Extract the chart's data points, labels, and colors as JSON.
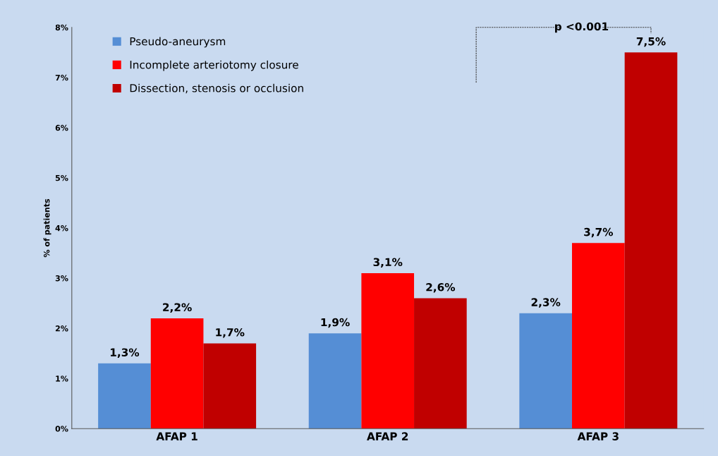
{
  "chart_data": {
    "type": "bar",
    "ylabel": "% of patients",
    "categories": [
      "AFAP 1",
      "AFAP 2",
      "AFAP 3"
    ],
    "series": [
      {
        "name": "Pseudo-aneurysm",
        "color": "#558ed5",
        "values": [
          1.3,
          1.9,
          2.3
        ],
        "value_labels": [
          "1,3%",
          "1,9%",
          "2,3%"
        ]
      },
      {
        "name": "Incomplete arteriotomy closure",
        "color": "#ff0000",
        "values": [
          2.2,
          3.1,
          3.7
        ],
        "value_labels": [
          "2,2%",
          "3,1%",
          "3,7%"
        ]
      },
      {
        "name": "Dissection, stenosis or occlusion",
        "color": "#c00000",
        "values": [
          1.7,
          2.6,
          7.5
        ],
        "value_labels": [
          "1,7%",
          "2,6%",
          "7,5%"
        ]
      }
    ],
    "ylim": [
      0,
      8
    ],
    "yticks": [
      {
        "value": 0,
        "label": "0%"
      },
      {
        "value": 1,
        "label": "1%"
      },
      {
        "value": 2,
        "label": "2%"
      },
      {
        "value": 3,
        "label": "3%"
      },
      {
        "value": 4,
        "label": "4%"
      },
      {
        "value": 5,
        "label": "5%"
      },
      {
        "value": 6,
        "label": "6%"
      },
      {
        "value": 7,
        "label": "7%"
      },
      {
        "value": 8,
        "label": "8%"
      }
    ],
    "grid": false,
    "legend": "top left",
    "annotations": [
      "p <0.001"
    ]
  }
}
